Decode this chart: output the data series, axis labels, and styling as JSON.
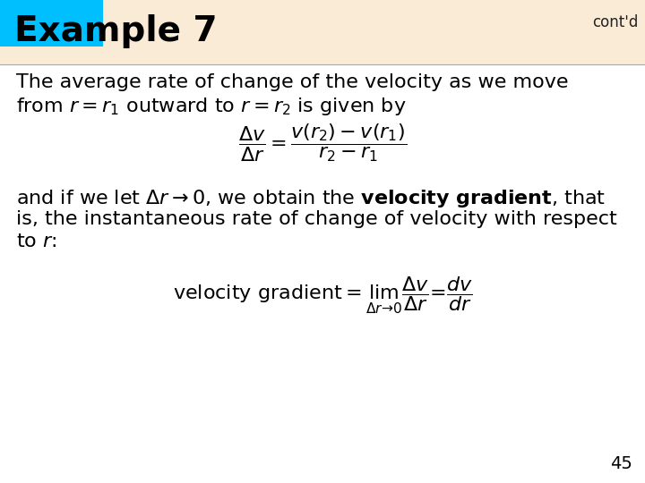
{
  "title": "Example 7",
  "contd": "cont'd",
  "header_bg": "#00BFFF",
  "header_bar_bg": "#FAEBD7",
  "slide_bg": "#FFFFFF",
  "title_color": "#000000",
  "title_fontsize": 28,
  "contd_fontsize": 12,
  "body_fontsize": 16,
  "page_number": "45",
  "line1_text": "The average rate of change of the velocity as we move",
  "line2_text": "from $r = r_1$ outward to $r = r_2$ is given by",
  "eq1": "$\\dfrac{\\Delta v}{\\Delta r} = \\dfrac{v(r_2) - v(r_1)}{r_2 - r_1}$",
  "para2_line1": "and if we let $\\Delta r \\rightarrow 0$, we obtain the $\\mathbf{velocity\\ gradient}$, that",
  "para2_line2": "is, the instantaneous rate of change of velocity with respect",
  "para2_line3": "to $r$:",
  "eq2": "$\\mathrm{velocity\\ gradient} = \\lim_{\\Delta r \\rightarrow 0} \\dfrac{\\Delta v}{\\Delta r} = \\dfrac{dv}{dr}$"
}
